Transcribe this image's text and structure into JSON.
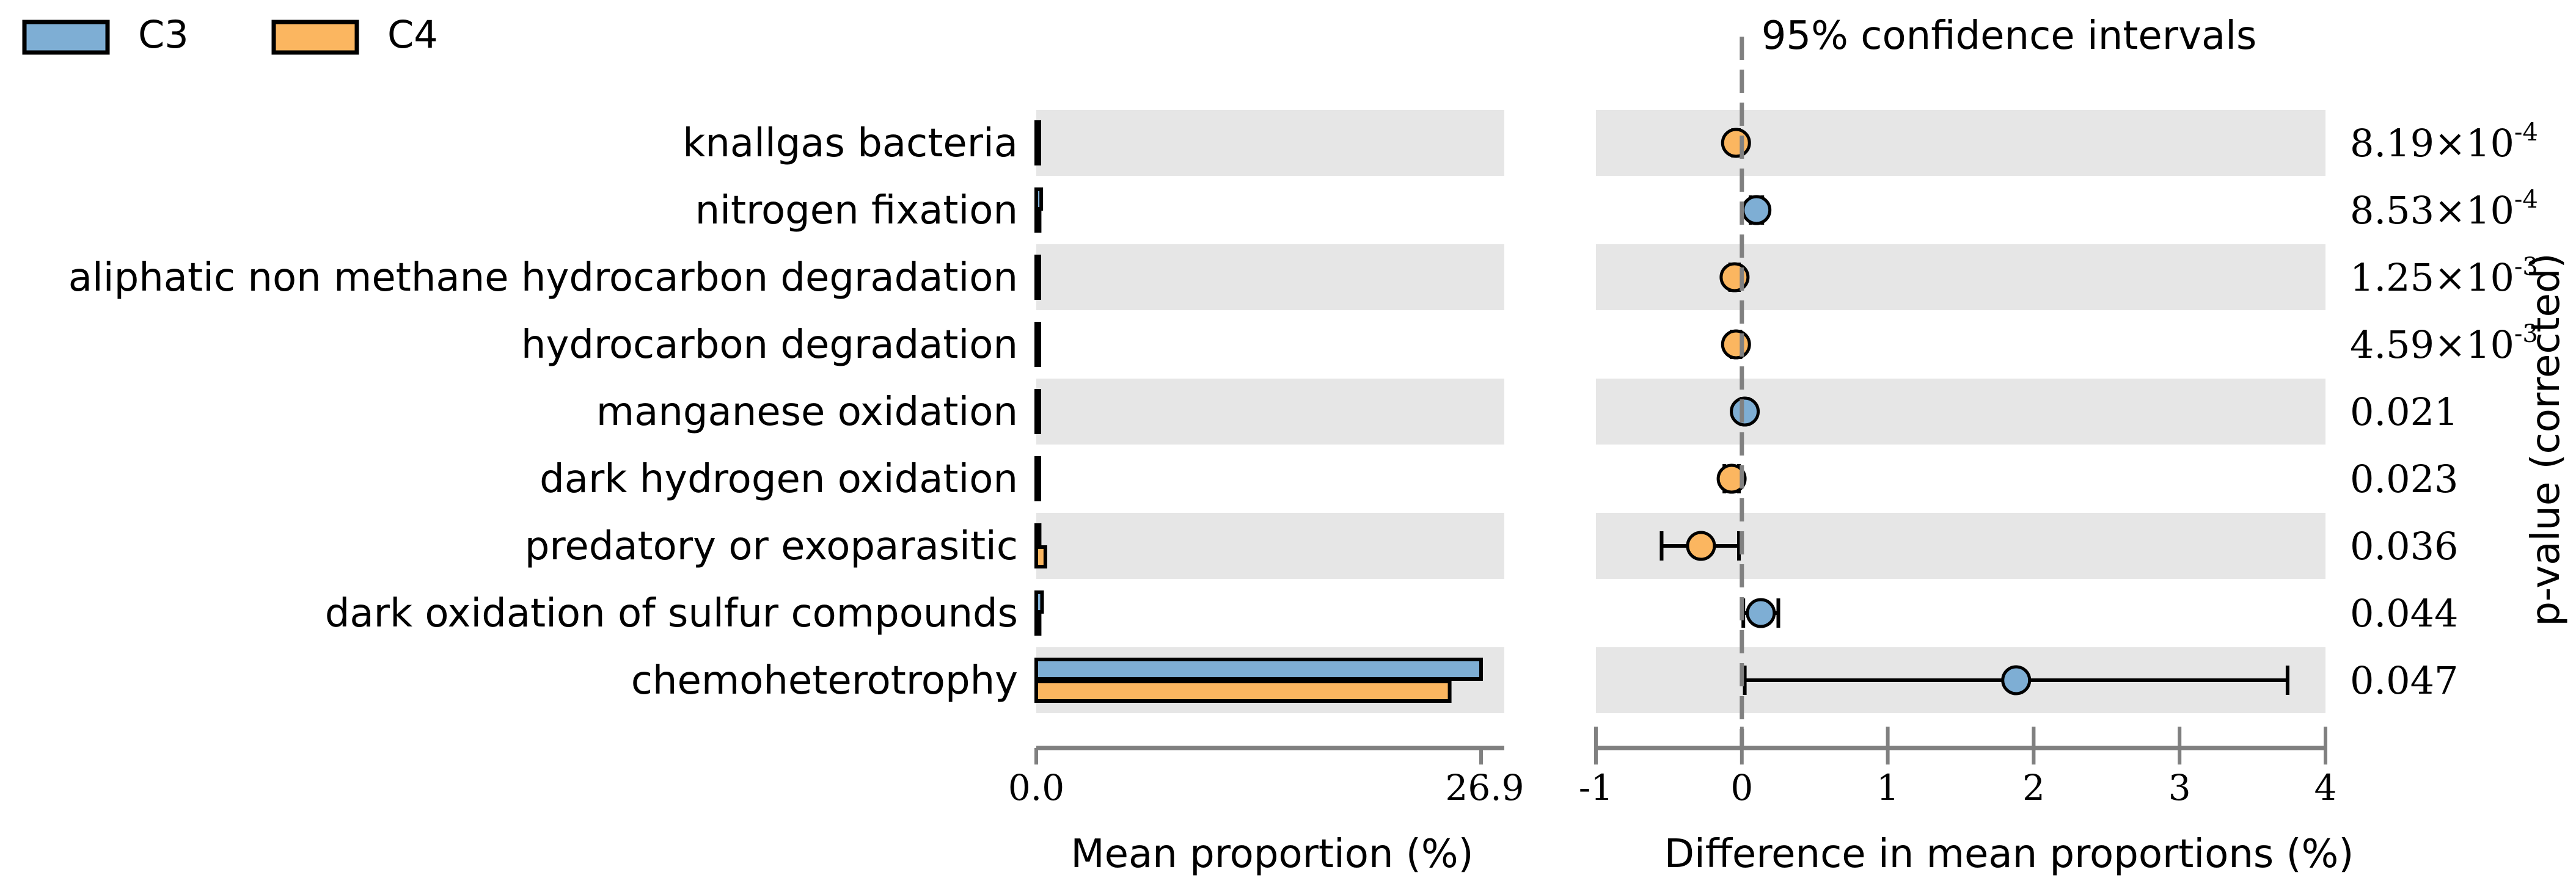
{
  "colors": {
    "c3": "#7eaed4",
    "c4": "#fbb660",
    "stripe": "#e6e6e6",
    "axis": "#808080",
    "edge": "#000000"
  },
  "legend": {
    "c3_label": "C3",
    "c4_label": "C4"
  },
  "chart_data": [
    {
      "type": "bar",
      "orientation": "horizontal",
      "title": "",
      "xlabel": "Mean proportion (%)",
      "ylabel": "",
      "xlim": [
        0,
        26.9
      ],
      "xticks": [
        "0.0",
        "26.9"
      ],
      "categories": [
        "knallgas bacteria",
        "nitrogen fixation",
        "aliphatic non methane hydrocarbon degradation",
        "hydrocarbon degradation",
        "manganese oxidation",
        "dark hydrogen oxidation",
        "predatory or exoparasitic",
        "dark oxidation of sulfur compounds",
        "chemoheterotrophy"
      ],
      "series": [
        {
          "name": "C3",
          "values": [
            0.0,
            0.3,
            0.05,
            0.05,
            0.1,
            0.08,
            0.2,
            0.35,
            26.9
          ]
        },
        {
          "name": "C4",
          "values": [
            0.05,
            0.2,
            0.1,
            0.1,
            0.05,
            0.12,
            0.55,
            0.2,
            25.0
          ]
        }
      ]
    },
    {
      "type": "scatter",
      "title": "95% confidence intervals",
      "xlabel": "Difference in mean proportions (%)",
      "ylabel": "p-value (corrected)",
      "xlim": [
        -1,
        4
      ],
      "xticks": [
        "-1",
        "0",
        "1",
        "2",
        "3",
        "4"
      ],
      "points": [
        {
          "category": "knallgas bacteria",
          "diff": -0.04,
          "ci": [
            -0.06,
            -0.02
          ],
          "favors": "C4",
          "p_value": "8.19×10",
          "p_exp": "-4"
        },
        {
          "category": "nitrogen fixation",
          "diff": 0.1,
          "ci": [
            0.06,
            0.14
          ],
          "favors": "C3",
          "p_value": "8.53×10",
          "p_exp": "-4"
        },
        {
          "category": "aliphatic non methane hydrocarbon degradation",
          "diff": -0.05,
          "ci": [
            -0.08,
            -0.02
          ],
          "favors": "C4",
          "p_value": "1.25×10",
          "p_exp": "-3"
        },
        {
          "category": "hydrocarbon degradation",
          "diff": -0.04,
          "ci": [
            -0.07,
            -0.01
          ],
          "favors": "C4",
          "p_value": "4.59×10",
          "p_exp": "-3"
        },
        {
          "category": "manganese oxidation",
          "diff": 0.02,
          "ci": [
            0.0,
            0.04
          ],
          "favors": "C3",
          "p_value": "0.021",
          "p_exp": ""
        },
        {
          "category": "dark hydrogen oxidation",
          "diff": -0.07,
          "ci": [
            -0.12,
            -0.02
          ],
          "favors": "C4",
          "p_value": "0.023",
          "p_exp": ""
        },
        {
          "category": "predatory or exoparasitic",
          "diff": -0.28,
          "ci": [
            -0.55,
            -0.02
          ],
          "favors": "C4",
          "p_value": "0.036",
          "p_exp": ""
        },
        {
          "category": "dark oxidation of sulfur compounds",
          "diff": 0.13,
          "ci": [
            0.01,
            0.25
          ],
          "favors": "C3",
          "p_value": "0.044",
          "p_exp": ""
        },
        {
          "category": "chemoheterotrophy",
          "diff": 1.88,
          "ci": [
            0.02,
            3.74
          ],
          "favors": "C3",
          "p_value": "0.047",
          "p_exp": ""
        }
      ]
    }
  ]
}
